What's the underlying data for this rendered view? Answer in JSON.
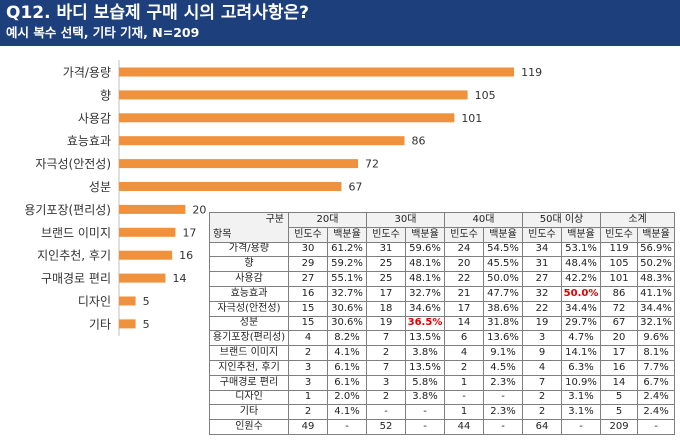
{
  "header": {
    "title": "Q12. 바디 보습제 구매 시의 고려사항은?",
    "subtitle": "예시 복수 선택, 기타 기재,  N=209"
  },
  "chart_data": {
    "type": "bar",
    "orientation": "horizontal",
    "categories": [
      "가격/용량",
      "향",
      "사용감",
      "효능효과",
      "자극성(안전성)",
      "성분",
      "용기포장(편리성)",
      "브랜드 이미지",
      "지인추천, 후기",
      "구매경로 편리",
      "디자인",
      "기타"
    ],
    "values": [
      119,
      105,
      101,
      86,
      72,
      67,
      20,
      17,
      16,
      14,
      5,
      5
    ],
    "bar_color": "#f0913e",
    "title": "",
    "xlabel": "",
    "ylabel": ""
  },
  "table": {
    "corner_top": "구분",
    "corner_bottom": "항목",
    "groups": [
      "20대",
      "30대",
      "40대",
      "50대 이상",
      "소계"
    ],
    "subheaders": [
      "빈도수",
      "백분율"
    ],
    "rows": [
      {
        "label": "가격/용량",
        "cells": [
          "30",
          "61.2%",
          "31",
          "59.6%",
          "24",
          "54.5%",
          "34",
          "53.1%",
          "119",
          "56.9%"
        ]
      },
      {
        "label": "향",
        "cells": [
          "29",
          "59.2%",
          "25",
          "48.1%",
          "20",
          "45.5%",
          "31",
          "48.4%",
          "105",
          "50.2%"
        ]
      },
      {
        "label": "사용감",
        "cells": [
          "27",
          "55.1%",
          "25",
          "48.1%",
          "22",
          "50.0%",
          "27",
          "42.2%",
          "101",
          "48.3%"
        ]
      },
      {
        "label": "효능효과",
        "cells": [
          "16",
          "32.7%",
          "17",
          "32.7%",
          "21",
          "47.7%",
          "32",
          "50.0%",
          "86",
          "41.1%"
        ]
      },
      {
        "label": "자극성(안전성)",
        "cells": [
          "15",
          "30.6%",
          "18",
          "34.6%",
          "17",
          "38.6%",
          "22",
          "34.4%",
          "72",
          "34.4%"
        ]
      },
      {
        "label": "성분",
        "cells": [
          "15",
          "30.6%",
          "19",
          "36.5%",
          "14",
          "31.8%",
          "19",
          "29.7%",
          "67",
          "32.1%"
        ]
      },
      {
        "label": "용기포장(편리성)",
        "cells": [
          "4",
          "8.2%",
          "7",
          "13.5%",
          "6",
          "13.6%",
          "3",
          "4.7%",
          "20",
          "9.6%"
        ]
      },
      {
        "label": "브랜드 이미지",
        "cells": [
          "2",
          "4.1%",
          "2",
          "3.8%",
          "4",
          "9.1%",
          "9",
          "14.1%",
          "17",
          "8.1%"
        ]
      },
      {
        "label": "지인추천, 후기",
        "cells": [
          "3",
          "6.1%",
          "7",
          "13.5%",
          "2",
          "4.5%",
          "4",
          "6.3%",
          "16",
          "7.7%"
        ]
      },
      {
        "label": "구매경로 편리",
        "cells": [
          "3",
          "6.1%",
          "3",
          "5.8%",
          "1",
          "2.3%",
          "7",
          "10.9%",
          "14",
          "6.7%"
        ]
      },
      {
        "label": "디자인",
        "cells": [
          "1",
          "2.0%",
          "2",
          "3.8%",
          "-",
          "-",
          "2",
          "3.1%",
          "5",
          "2.4%"
        ]
      },
      {
        "label": "기타",
        "cells": [
          "2",
          "4.1%",
          "-",
          "-",
          "1",
          "2.3%",
          "2",
          "3.1%",
          "5",
          "2.4%"
        ]
      },
      {
        "label": "인원수",
        "cells": [
          "49",
          "-",
          "52",
          "-",
          "44",
          "-",
          "64",
          "-",
          "209",
          "-"
        ]
      }
    ],
    "highlights": [
      {
        "row": 3,
        "col": 7,
        "color": "#e00000"
      },
      {
        "row": 5,
        "col": 3,
        "color": "#e00000"
      }
    ]
  }
}
